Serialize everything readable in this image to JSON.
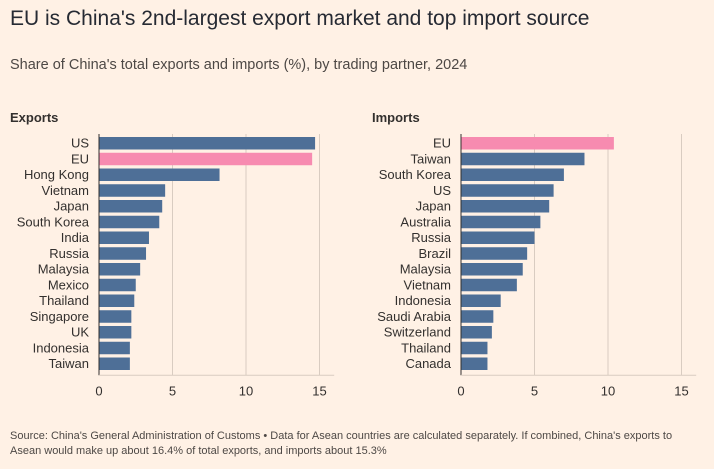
{
  "title": "EU is China's 2nd-largest export market and top import source",
  "subtitle": "Share of China's total exports and imports (%), by trading partner, 2024",
  "source": "Source: China's General Administration of Customs • Data for Asean countries are calculated separately. If combined, China's exports to Asean would make up about 16.4% of total exports, and imports about 15.3%",
  "colors": {
    "bar": "#4e6f97",
    "highlight": "#f78bb0",
    "grid": "#d9ccc1",
    "axis": "#33302e"
  },
  "chart_data": [
    {
      "type": "bar",
      "orientation": "horizontal",
      "title": "Exports",
      "categories": [
        "US",
        "EU",
        "Hong Kong",
        "Vietnam",
        "Japan",
        "South Korea",
        "India",
        "Russia",
        "Malaysia",
        "Mexico",
        "Thailand",
        "Singapore",
        "UK",
        "Indonesia",
        "Taiwan"
      ],
      "values": [
        14.7,
        14.5,
        8.2,
        4.5,
        4.3,
        4.1,
        3.4,
        3.2,
        2.8,
        2.5,
        2.4,
        2.2,
        2.2,
        2.1,
        2.1
      ],
      "highlight": "EU",
      "xlim": [
        0,
        16
      ],
      "xticks": [
        0,
        5,
        10,
        15
      ],
      "grid": true
    },
    {
      "type": "bar",
      "orientation": "horizontal",
      "title": "Imports",
      "categories": [
        "EU",
        "Taiwan",
        "South Korea",
        "US",
        "Japan",
        "Australia",
        "Russia",
        "Brazil",
        "Malaysia",
        "Vietnam",
        "Indonesia",
        "Saudi Arabia",
        "Switzerland",
        "Thailand",
        "Canada"
      ],
      "values": [
        10.4,
        8.4,
        7.0,
        6.3,
        6.0,
        5.4,
        5.0,
        4.5,
        4.2,
        3.8,
        2.7,
        2.2,
        2.1,
        1.8,
        1.8
      ],
      "highlight": "EU",
      "xlim": [
        0,
        16
      ],
      "xticks": [
        0,
        5,
        10,
        15
      ],
      "grid": true
    }
  ]
}
